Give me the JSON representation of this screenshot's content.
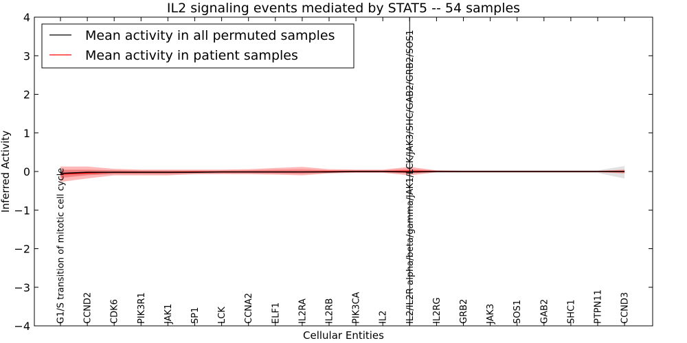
{
  "chart_data": {
    "type": "line",
    "title": "IL2 signaling events mediated by STAT5 -- 54 samples",
    "xlabel": "Cellular Entities",
    "ylabel": "Inferred Activity",
    "ylim": [
      -4,
      4
    ],
    "yticks": [
      -4,
      -3,
      -2,
      -1,
      0,
      1,
      2,
      3,
      4
    ],
    "ytick_labels": [
      "−4",
      "−3",
      "−2",
      "−1",
      "0",
      "1",
      "2",
      "3",
      "4"
    ],
    "grid": false,
    "legend_position": "top-left",
    "categories": [
      "G1/S transition of mitotic cell cycle",
      "CCND2",
      "CDK6",
      "PIK3R1",
      "JAK1",
      "SP1",
      "LCK",
      "CCNA2",
      "ELF1",
      "IL2RA",
      "IL2RB",
      "PIK3CA",
      "IL2",
      "IL2/IL2R alpha/beta/gamma/JAK1/LCK/JAK3/SHC/GAB2/GRB2/SOS1",
      "IL2RG",
      "GRB2",
      "JAK3",
      "SOS1",
      "GAB2",
      "SHC1",
      "PTPN11",
      "CCND3"
    ],
    "highlight_category": "IL2/IL2R alpha/beta/gamma/JAK1/LCK/JAK3/SHC/GAB2/GRB2/SOS1",
    "series": [
      {
        "name": "Mean activity in all permuted samples",
        "color": "#000000",
        "values": [
          -0.05,
          -0.02,
          -0.02,
          -0.02,
          -0.02,
          -0.02,
          -0.01,
          -0.01,
          -0.01,
          -0.01,
          -0.01,
          0.0,
          0.0,
          -0.01,
          0.0,
          0.0,
          0.0,
          0.0,
          0.0,
          0.0,
          0.0,
          0.0
        ],
        "band_lower": [
          -0.15,
          -0.09,
          -0.07,
          -0.07,
          -0.07,
          -0.06,
          -0.05,
          -0.05,
          -0.05,
          -0.05,
          -0.04,
          -0.04,
          -0.04,
          -0.04,
          -0.04,
          -0.04,
          -0.04,
          -0.04,
          -0.04,
          -0.04,
          -0.04,
          -0.18
        ],
        "band_upper": [
          0.05,
          0.04,
          0.03,
          0.03,
          0.03,
          0.03,
          0.03,
          0.03,
          0.03,
          0.03,
          0.03,
          0.03,
          0.03,
          0.03,
          0.03,
          0.03,
          0.03,
          0.03,
          0.03,
          0.03,
          0.03,
          0.14
        ]
      },
      {
        "name": "Mean activity in patient samples",
        "color": "#ff0000",
        "values": [
          -0.07,
          -0.04,
          -0.02,
          -0.02,
          -0.02,
          -0.01,
          -0.01,
          -0.01,
          -0.01,
          -0.01,
          0.0,
          0.0,
          0.0,
          0.01,
          0.0,
          0.0,
          0.0,
          0.0,
          0.0,
          0.0,
          0.0,
          0.0
        ],
        "band_lower_outer": [
          -0.27,
          -0.18,
          -0.1,
          -0.1,
          -0.1,
          -0.07,
          -0.07,
          -0.07,
          -0.08,
          -0.1,
          -0.05,
          -0.03,
          -0.03,
          -0.1,
          -0.02,
          -0.02,
          -0.02,
          -0.02,
          -0.02,
          -0.02,
          -0.02,
          -0.05
        ],
        "band_upper_outer": [
          0.13,
          0.13,
          0.07,
          0.05,
          0.05,
          0.05,
          0.05,
          0.06,
          0.09,
          0.12,
          0.06,
          0.05,
          0.05,
          0.12,
          0.03,
          0.02,
          0.02,
          0.02,
          0.02,
          0.02,
          0.02,
          0.05
        ],
        "band_lower_inner": [
          -0.17,
          -0.1,
          -0.06,
          -0.06,
          -0.06,
          -0.04,
          -0.04,
          -0.04,
          -0.05,
          -0.06,
          -0.03,
          -0.02,
          -0.02,
          -0.05,
          -0.01,
          -0.01,
          -0.01,
          -0.01,
          -0.01,
          -0.01,
          -0.01,
          -0.03
        ],
        "band_upper_inner": [
          0.04,
          0.05,
          0.03,
          0.02,
          0.02,
          0.02,
          0.02,
          0.03,
          0.05,
          0.06,
          0.03,
          0.03,
          0.03,
          0.07,
          0.02,
          0.01,
          0.01,
          0.01,
          0.01,
          0.01,
          0.01,
          0.03
        ]
      }
    ]
  }
}
